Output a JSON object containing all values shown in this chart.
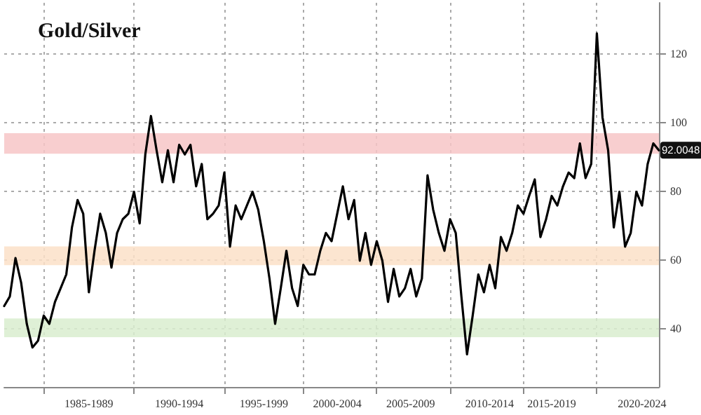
{
  "chart_data": {
    "type": "line",
    "title": "Gold/Silver",
    "categories": [
      null,
      null,
      null,
      null,
      null,
      null,
      null,
      null,
      null,
      null,
      null,
      null,
      null,
      null,
      null,
      "1985-1989",
      null,
      null,
      null,
      null,
      null,
      null,
      null,
      null,
      null,
      null,
      null,
      null,
      null,
      null,
      null,
      "1990-1994",
      null,
      null,
      null,
      null,
      null,
      null,
      null,
      null,
      null,
      null,
      null,
      null,
      null,
      null,
      "1995-1999",
      null,
      null,
      null,
      null,
      null,
      null,
      null,
      null,
      null,
      null,
      null,
      null,
      "2000-2004",
      null,
      null,
      null,
      null,
      null,
      null,
      null,
      null,
      null,
      null,
      null,
      null,
      "2005-2009",
      null,
      null,
      null,
      null,
      null,
      null,
      null,
      null,
      null,
      null,
      null,
      null,
      null,
      "2010-2014",
      null,
      null,
      null,
      null,
      null,
      null,
      null,
      null,
      null,
      null,
      "2015-2019",
      null,
      null,
      null,
      null,
      null,
      null,
      null,
      null,
      null,
      null,
      null,
      null,
      null,
      null,
      null,
      "2020-2024",
      null,
      null,
      null
    ],
    "series": [
      {
        "color": "#000000",
        "values": [
          46.6,
          49.4,
          60.6,
          53.4,
          41.4,
          34.5,
          36.5,
          43.8,
          41.4,
          47.8,
          51.8,
          55.8,
          69.5,
          77.5,
          73.5,
          50.6,
          62.7,
          73.5,
          67.9,
          57.8,
          67.9,
          71.9,
          73.5,
          79.9,
          70.7,
          90.8,
          102,
          92,
          82.7,
          92,
          82.7,
          93.6,
          90.8,
          93.6,
          81.5,
          88,
          71.9,
          73.5,
          75.9,
          85.5,
          63.9,
          75.9,
          71.9,
          75.9,
          79.9,
          74.7,
          65.5,
          54.6,
          41.4,
          51.8,
          62.7,
          51.8,
          46.6,
          58.6,
          55.8,
          55.8,
          62.7,
          67.9,
          65.5,
          73.5,
          81.5,
          71.9,
          77.5,
          59.8,
          67.9,
          58.6,
          65.5,
          59.8,
          47.8,
          57.4,
          49.4,
          51.8,
          57.4,
          49.4,
          54.6,
          84.7,
          74.7,
          67.9,
          62.7,
          71.9,
          67.9,
          49.4,
          32.5,
          43.8,
          55.8,
          50.6,
          58.6,
          51.8,
          66.7,
          62.7,
          67.9,
          75.9,
          73.5,
          78.7,
          83.5,
          66.7,
          71.9,
          78.7,
          75.9,
          81.5,
          85.5,
          83.9,
          94,
          83.9,
          88,
          126.1,
          101.6,
          92,
          69.5,
          79.9,
          63.9,
          67.9,
          79.9,
          75.9,
          88,
          94,
          92
        ]
      }
    ],
    "ylim": [
      23,
      135
    ],
    "yticks": [
      40,
      60,
      80,
      100,
      120
    ],
    "grid": true,
    "marker": "none",
    "line_style": "solid",
    "bands": [
      {
        "axis": "y",
        "from": 91,
        "to": 97,
        "color": "#f7c5c7"
      },
      {
        "axis": "y",
        "from": 58.5,
        "to": 64,
        "color": "#fbe1c8"
      },
      {
        "axis": "y",
        "from": 37.5,
        "to": 43,
        "color": "#d9edcf"
      }
    ],
    "annotations": [
      {
        "text": "92.0048",
        "y": 92.0048
      }
    ]
  }
}
